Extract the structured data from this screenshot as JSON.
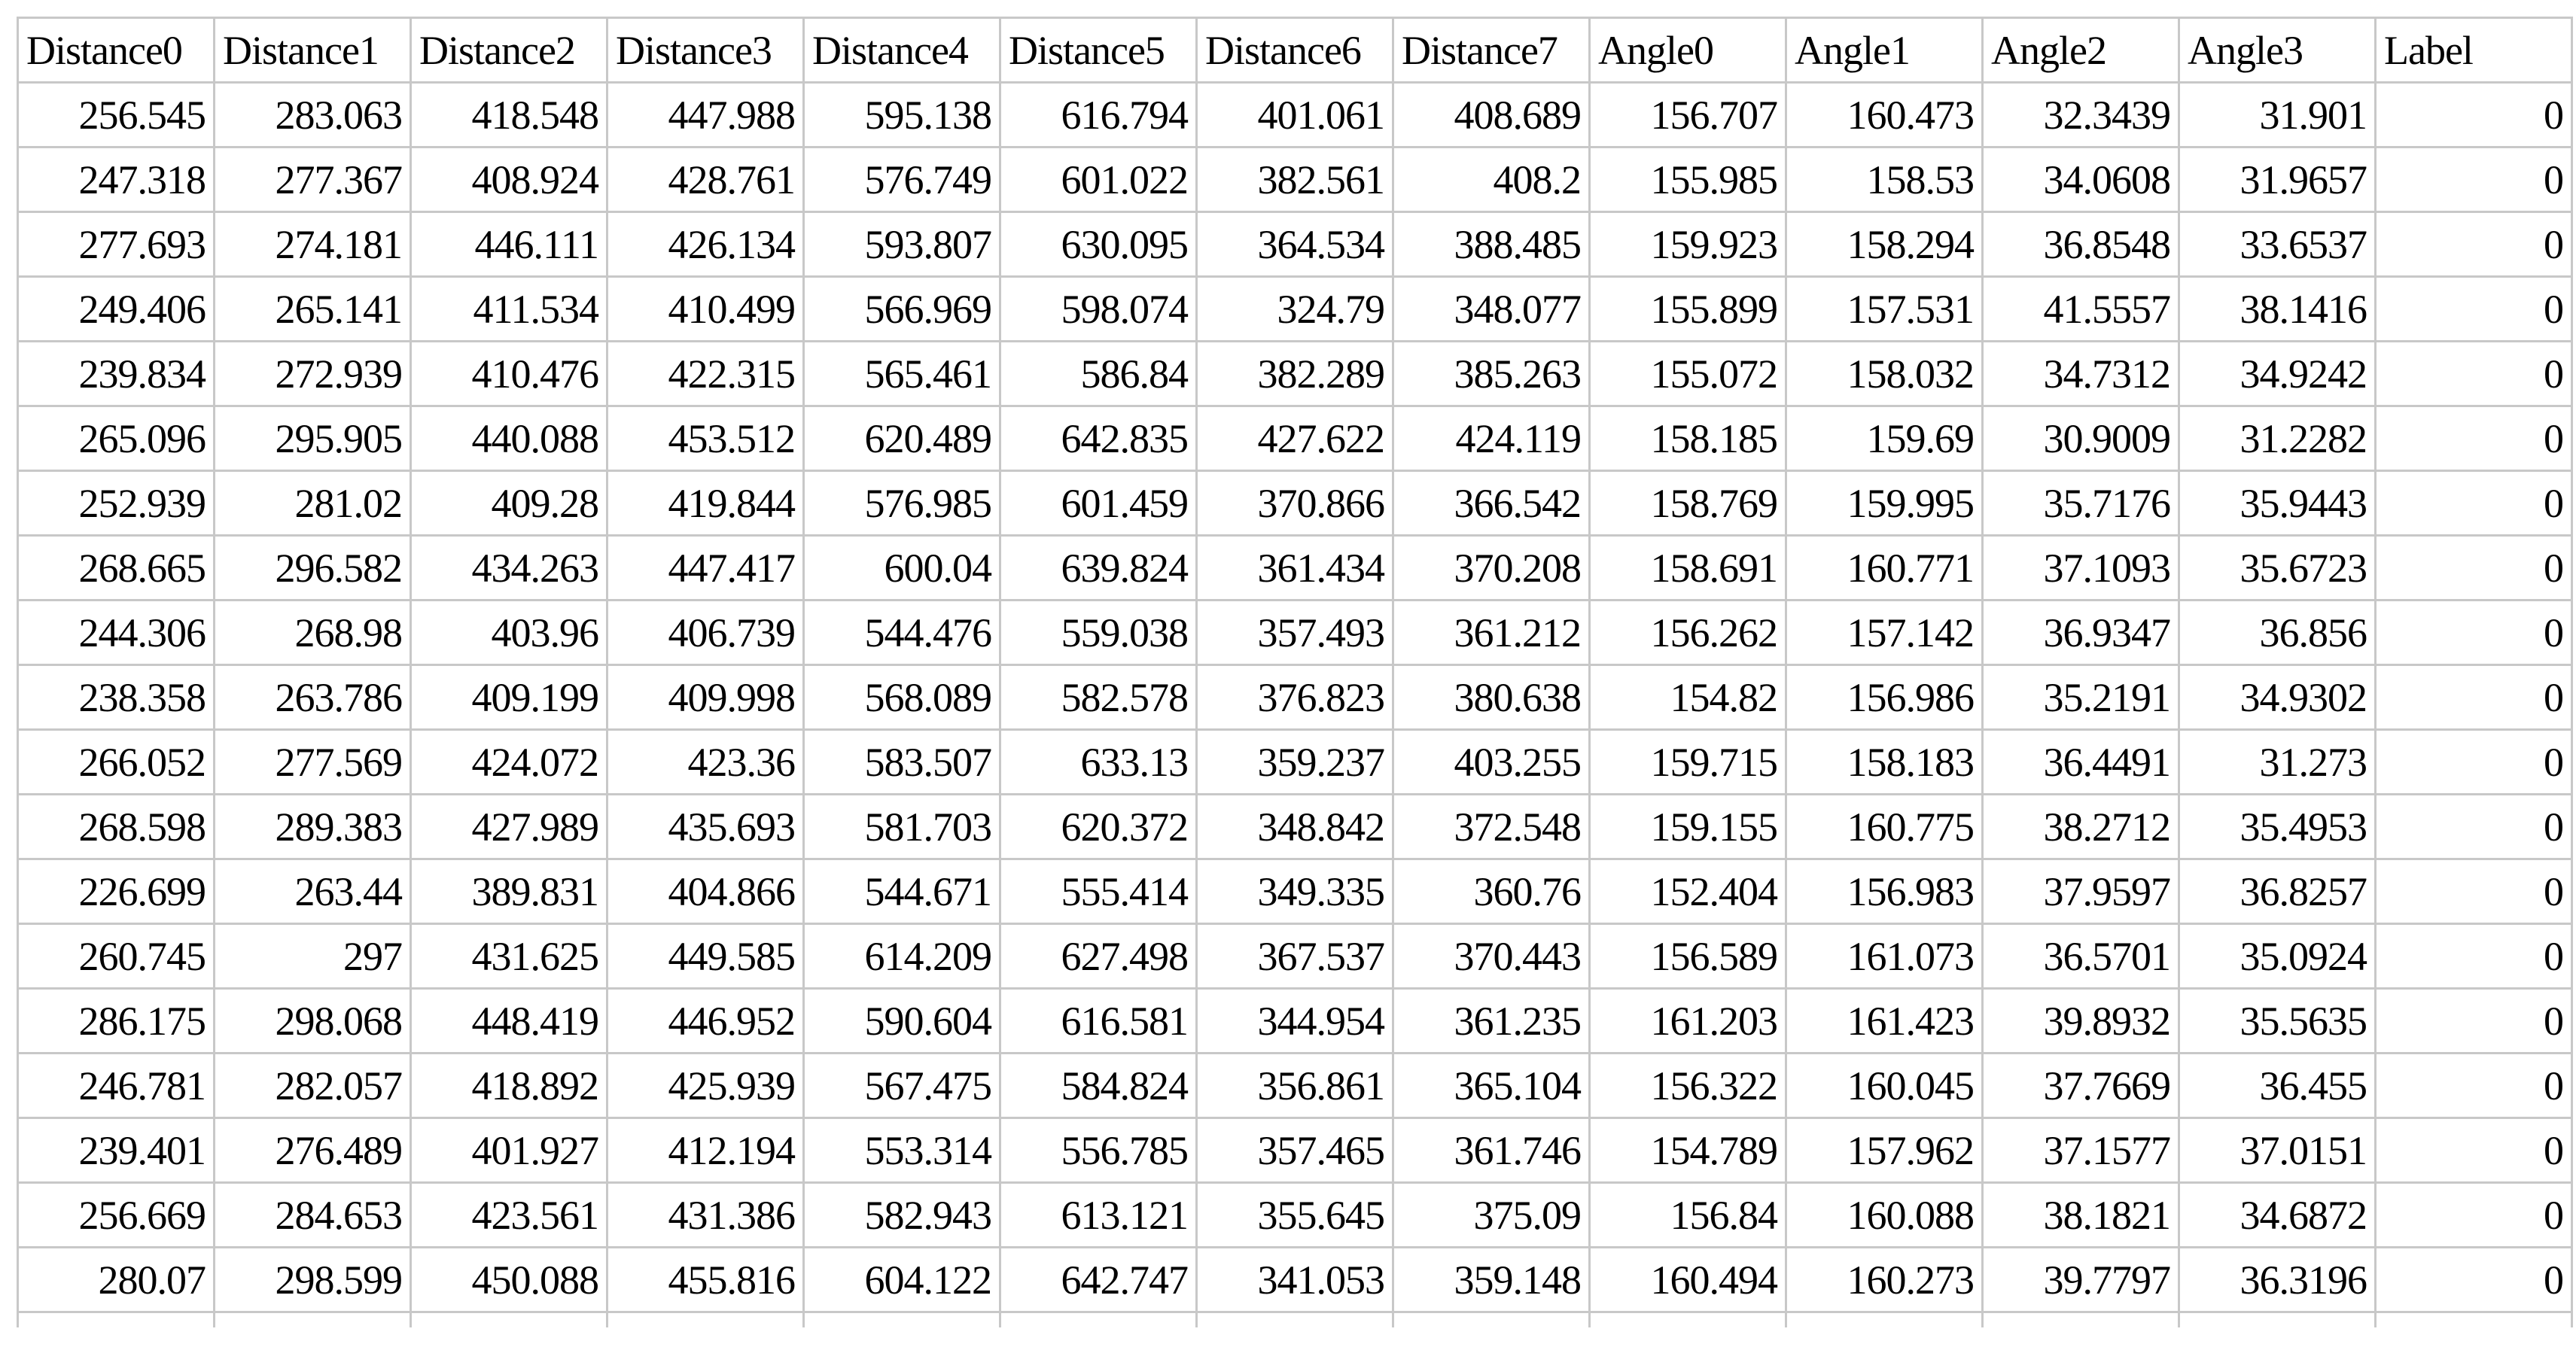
{
  "table": {
    "header": [
      "Distance0",
      "Distance1",
      "Distance2",
      "Distance3",
      "Distance4",
      "Distance5",
      "Distance6",
      "Distance7",
      "Angle0",
      "Angle1",
      "Angle2",
      "Angle3",
      "Label"
    ],
    "rows": [
      [
        256.545,
        283.063,
        418.548,
        447.988,
        595.138,
        616.794,
        401.061,
        408.689,
        156.707,
        160.473,
        32.3439,
        31.901,
        0
      ],
      [
        247.318,
        277.367,
        408.924,
        428.761,
        576.749,
        601.022,
        382.561,
        408.2,
        155.985,
        158.53,
        34.0608,
        31.9657,
        0
      ],
      [
        277.693,
        274.181,
        446.111,
        426.134,
        593.807,
        630.095,
        364.534,
        388.485,
        159.923,
        158.294,
        36.8548,
        33.6537,
        0
      ],
      [
        249.406,
        265.141,
        411.534,
        410.499,
        566.969,
        598.074,
        324.79,
        348.077,
        155.899,
        157.531,
        41.5557,
        38.1416,
        0
      ],
      [
        239.834,
        272.939,
        410.476,
        422.315,
        565.461,
        586.84,
        382.289,
        385.263,
        155.072,
        158.032,
        34.7312,
        34.9242,
        0
      ],
      [
        265.096,
        295.905,
        440.088,
        453.512,
        620.489,
        642.835,
        427.622,
        424.119,
        158.185,
        159.69,
        30.9009,
        31.2282,
        0
      ],
      [
        252.939,
        281.02,
        409.28,
        419.844,
        576.985,
        601.459,
        370.866,
        366.542,
        158.769,
        159.995,
        35.7176,
        35.9443,
        0
      ],
      [
        268.665,
        296.582,
        434.263,
        447.417,
        600.04,
        639.824,
        361.434,
        370.208,
        158.691,
        160.771,
        37.1093,
        35.6723,
        0
      ],
      [
        244.306,
        268.98,
        403.96,
        406.739,
        544.476,
        559.038,
        357.493,
        361.212,
        156.262,
        157.142,
        36.9347,
        36.856,
        0
      ],
      [
        238.358,
        263.786,
        409.199,
        409.998,
        568.089,
        582.578,
        376.823,
        380.638,
        154.82,
        156.986,
        35.2191,
        34.9302,
        0
      ],
      [
        266.052,
        277.569,
        424.072,
        423.36,
        583.507,
        633.13,
        359.237,
        403.255,
        159.715,
        158.183,
        36.4491,
        31.273,
        0
      ],
      [
        268.598,
        289.383,
        427.989,
        435.693,
        581.703,
        620.372,
        348.842,
        372.548,
        159.155,
        160.775,
        38.2712,
        35.4953,
        0
      ],
      [
        226.699,
        263.44,
        389.831,
        404.866,
        544.671,
        555.414,
        349.335,
        360.76,
        152.404,
        156.983,
        37.9597,
        36.8257,
        0
      ],
      [
        260.745,
        297,
        431.625,
        449.585,
        614.209,
        627.498,
        367.537,
        370.443,
        156.589,
        161.073,
        36.5701,
        35.0924,
        0
      ],
      [
        286.175,
        298.068,
        448.419,
        446.952,
        590.604,
        616.581,
        344.954,
        361.235,
        161.203,
        161.423,
        39.8932,
        35.5635,
        0
      ],
      [
        246.781,
        282.057,
        418.892,
        425.939,
        567.475,
        584.824,
        356.861,
        365.104,
        156.322,
        160.045,
        37.7669,
        36.455,
        0
      ],
      [
        239.401,
        276.489,
        401.927,
        412.194,
        553.314,
        556.785,
        357.465,
        361.746,
        154.789,
        157.962,
        37.1577,
        37.0151,
        0
      ],
      [
        256.669,
        284.653,
        423.561,
        431.386,
        582.943,
        613.121,
        355.645,
        375.09,
        156.84,
        160.088,
        38.1821,
        34.6872,
        0
      ],
      [
        280.07,
        298.599,
        450.088,
        455.816,
        604.122,
        642.747,
        341.053,
        359.148,
        160.494,
        160.273,
        39.7797,
        36.3196,
        0
      ]
    ]
  }
}
